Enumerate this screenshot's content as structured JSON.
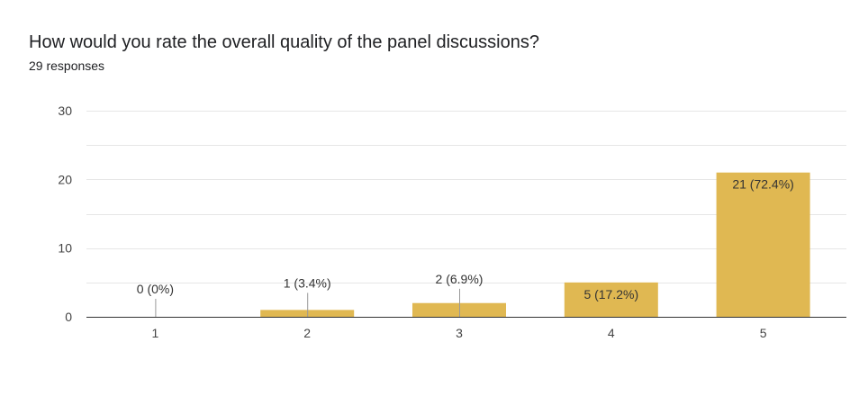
{
  "question": {
    "title": "How would you rate the overall quality of the panel discussions?",
    "responses_label": "29 responses"
  },
  "colors": {
    "bar": "#e0b852",
    "gridline": "#e6e6e6",
    "axis": "#333333",
    "label_line": "#999999"
  },
  "chart_data": {
    "type": "bar",
    "title": "How would you rate the overall quality of the panel discussions?",
    "xlabel": "",
    "ylabel": "",
    "categories": [
      "1",
      "2",
      "3",
      "4",
      "5"
    ],
    "values": [
      0,
      1,
      2,
      5,
      21
    ],
    "data_labels": [
      "0 (0%)",
      "1 (3.4%)",
      "2 (6.9%)",
      "5 (17.2%)",
      "21 (72.4%)"
    ],
    "ylim": [
      0,
      30
    ],
    "yticks": [
      0,
      10,
      20,
      30
    ],
    "minor_gridlines_every": 5,
    "grid": true,
    "legend": "none"
  }
}
